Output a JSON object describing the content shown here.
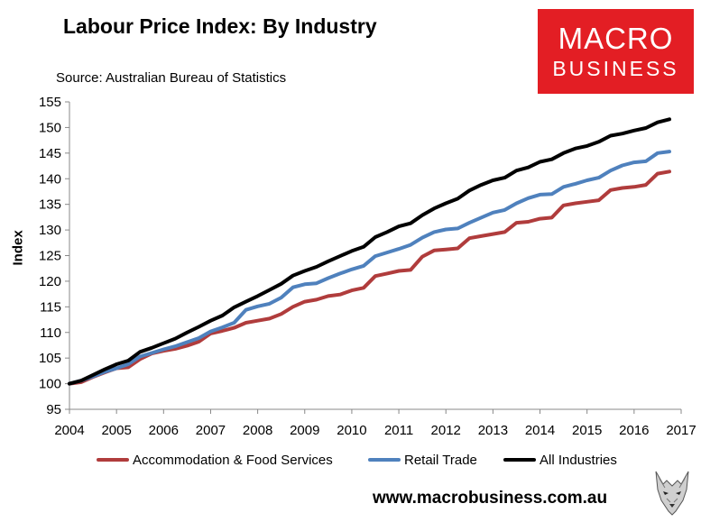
{
  "header": {
    "title": "Labour Price Index: By Industry",
    "source": "Source: Australian Bureau of Statistics"
  },
  "logo": {
    "line1": "MACRO",
    "line2": "BUSINESS"
  },
  "footer": {
    "url": "www.macrobusiness.com.au"
  },
  "colors": {
    "accommodation": "#b03c3c",
    "retail": "#4f81bd",
    "all": "#000000",
    "brand_red": "#e31e24"
  },
  "chart_data": {
    "type": "line",
    "title": "Labour Price Index: By Industry",
    "xlabel": "",
    "ylabel": "Index",
    "xlim": [
      2004,
      2017
    ],
    "ylim": [
      95,
      155
    ],
    "yticks": [
      95,
      100,
      105,
      110,
      115,
      120,
      125,
      130,
      135,
      140,
      145,
      150,
      155
    ],
    "xticks": [
      2004,
      2005,
      2006,
      2007,
      2008,
      2009,
      2010,
      2011,
      2012,
      2013,
      2014,
      2015,
      2016,
      2017
    ],
    "grid": false,
    "legend_position": "bottom",
    "x": [
      2004.0,
      2004.25,
      2004.5,
      2004.75,
      2005.0,
      2005.25,
      2005.5,
      2005.75,
      2006.0,
      2006.25,
      2006.5,
      2006.75,
      2007.0,
      2007.25,
      2007.5,
      2007.75,
      2008.0,
      2008.25,
      2008.5,
      2008.75,
      2009.0,
      2009.25,
      2009.5,
      2009.75,
      2010.0,
      2010.25,
      2010.5,
      2010.75,
      2011.0,
      2011.25,
      2011.5,
      2011.75,
      2012.0,
      2012.25,
      2012.5,
      2012.75,
      2013.0,
      2013.25,
      2013.5,
      2013.75,
      2014.0,
      2014.25,
      2014.5,
      2014.75,
      2015.0,
      2015.25,
      2015.5,
      2015.75,
      2016.0,
      2016.25,
      2016.5,
      2016.75
    ],
    "series": [
      {
        "name": "Accommodation & Food Services",
        "color": "#b03c3c",
        "values": [
          100.0,
          100.3,
          101.3,
          102.2,
          103.0,
          103.2,
          104.8,
          105.9,
          106.4,
          106.8,
          107.4,
          108.2,
          109.8,
          110.3,
          110.9,
          111.9,
          112.3,
          112.7,
          113.6,
          115.0,
          116.0,
          116.4,
          117.1,
          117.4,
          118.2,
          118.7,
          121.0,
          121.5,
          122.0,
          122.2,
          124.8,
          126.0,
          126.2,
          126.4,
          128.4,
          128.8,
          129.2,
          129.6,
          131.4,
          131.6,
          132.2,
          132.4,
          134.8,
          135.2,
          135.5,
          135.8,
          137.8,
          138.2,
          138.4,
          138.8,
          141.0,
          141.4
        ]
      },
      {
        "name": "Retail Trade",
        "color": "#4f81bd",
        "values": [
          100.0,
          100.6,
          101.4,
          102.3,
          103.0,
          103.8,
          105.3,
          106.0,
          106.7,
          107.3,
          108.1,
          108.9,
          110.2,
          111.0,
          111.9,
          114.4,
          115.1,
          115.6,
          116.8,
          118.8,
          119.4,
          119.6,
          120.6,
          121.5,
          122.3,
          123.0,
          124.9,
          125.6,
          126.3,
          127.1,
          128.5,
          129.6,
          130.1,
          130.3,
          131.4,
          132.4,
          133.4,
          133.9,
          135.2,
          136.2,
          136.9,
          137.0,
          138.4,
          139.0,
          139.7,
          140.2,
          141.6,
          142.6,
          143.2,
          143.4,
          145.0,
          145.3
        ]
      },
      {
        "name": "All Industries",
        "color": "#000000",
        "values": [
          100.0,
          100.6,
          101.7,
          102.8,
          103.8,
          104.5,
          106.2,
          107.0,
          107.9,
          108.8,
          110.0,
          111.1,
          112.3,
          113.3,
          114.9,
          116.0,
          117.1,
          118.3,
          119.5,
          121.1,
          122.0,
          122.8,
          123.9,
          124.9,
          125.9,
          126.7,
          128.6,
          129.6,
          130.7,
          131.3,
          132.9,
          134.2,
          135.2,
          136.1,
          137.7,
          138.8,
          139.7,
          140.2,
          141.6,
          142.2,
          143.3,
          143.8,
          145.0,
          145.9,
          146.4,
          147.2,
          148.4,
          148.8,
          149.4,
          149.9,
          151.0,
          151.6
        ]
      }
    ]
  }
}
